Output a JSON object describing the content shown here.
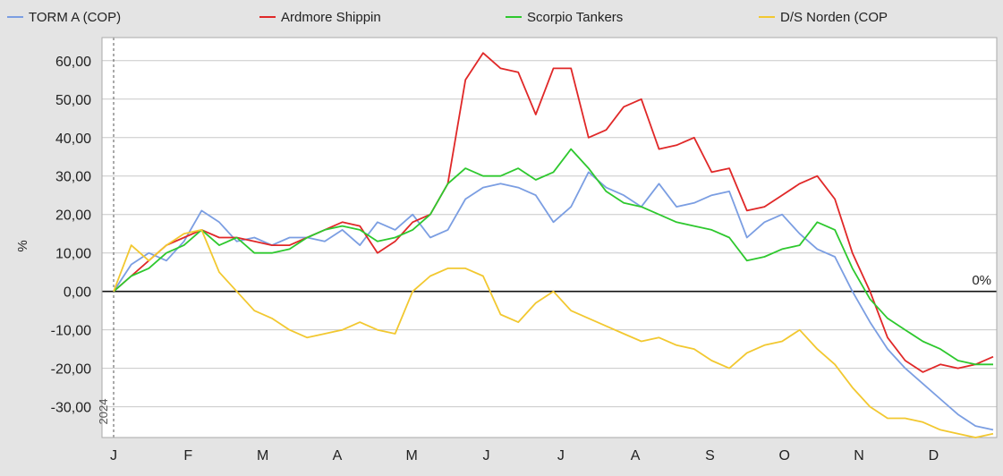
{
  "chart_data": {
    "type": "line",
    "title": "",
    "ylabel": "%",
    "xlabel": "",
    "ylim": [
      -38,
      66
    ],
    "yticks": [
      60,
      50,
      40,
      30,
      20,
      10,
      0,
      -10,
      -20,
      -30
    ],
    "ytick_labels": [
      "60,00",
      "50,00",
      "40,00",
      "30,00",
      "20,00",
      "10,00",
      "0,00",
      "-10,00",
      "-20,00",
      "-30,00"
    ],
    "month_labels": [
      "J",
      "F",
      "M",
      "A",
      "M",
      "J",
      "J",
      "A",
      "S",
      "O",
      "N",
      "D"
    ],
    "year_label": "2024",
    "zero_line_label": "0%",
    "grid": true,
    "legend_position": "top",
    "series": [
      {
        "name": "TORM A (COP)",
        "color": "#7b9ee2",
        "values": [
          0,
          7,
          10,
          8,
          13,
          21,
          18,
          13,
          14,
          12,
          14,
          14,
          13,
          16,
          12,
          18,
          16,
          20,
          14,
          16,
          24,
          27,
          28,
          27,
          25,
          18,
          22,
          31,
          27,
          25,
          22,
          28,
          22,
          23,
          25,
          26,
          14,
          18,
          20,
          15,
          11,
          9,
          0,
          -8,
          -15,
          -20,
          -24,
          -28,
          -32,
          -35,
          -36
        ]
      },
      {
        "name": "Ardmore Shippin",
        "color": "#e02828",
        "values": [
          0,
          4,
          8,
          12,
          14,
          16,
          14,
          14,
          13,
          12,
          12,
          14,
          16,
          18,
          17,
          10,
          13,
          18,
          20,
          28,
          55,
          62,
          58,
          57,
          46,
          58,
          58,
          40,
          42,
          48,
          50,
          37,
          38,
          40,
          31,
          32,
          21,
          22,
          25,
          28,
          30,
          24,
          10,
          0,
          -12,
          -18,
          -21,
          -19,
          -20,
          -19,
          -17
        ]
      },
      {
        "name": "Scorpio Tankers",
        "color": "#2ec82e",
        "values": [
          0,
          4,
          6,
          10,
          12,
          16,
          12,
          14,
          10,
          10,
          11,
          14,
          16,
          17,
          16,
          13,
          14,
          16,
          20,
          28,
          32,
          30,
          30,
          32,
          29,
          31,
          37,
          32,
          26,
          23,
          22,
          20,
          18,
          17,
          16,
          14,
          8,
          9,
          11,
          12,
          18,
          16,
          6,
          -2,
          -7,
          -10,
          -13,
          -15,
          -18,
          -19,
          -19
        ]
      },
      {
        "name": "D/S Norden (COP",
        "color": "#f2c830",
        "values": [
          0,
          12,
          8,
          12,
          15,
          16,
          5,
          0,
          -5,
          -7,
          -10,
          -12,
          -11,
          -10,
          -8,
          -10,
          -11,
          0,
          4,
          6,
          6,
          4,
          -6,
          -8,
          -3,
          0,
          -5,
          -7,
          -9,
          -11,
          -13,
          -12,
          -14,
          -15,
          -18,
          -20,
          -16,
          -14,
          -13,
          -10,
          -15,
          -19,
          -25,
          -30,
          -33,
          -33,
          -34,
          -36,
          -37,
          -38,
          -37
        ]
      }
    ]
  }
}
